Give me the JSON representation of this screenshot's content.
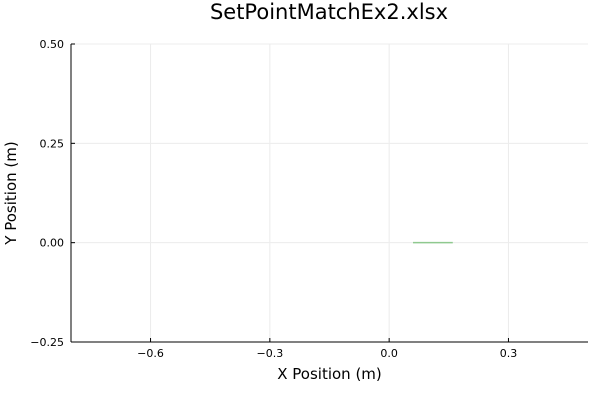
{
  "chart_data": {
    "type": "line",
    "title": "SetPointMatchEx2.xlsx",
    "xlabel": "X Position (m)",
    "ylabel": "Y Position (m)",
    "xlim": [
      -0.8,
      0.5
    ],
    "ylim": [
      -0.25,
      0.5
    ],
    "xticks": [
      -0.6,
      -0.3,
      0.0,
      0.3
    ],
    "xtick_labels": [
      "−0.6",
      "−0.3",
      "0.0",
      "0.3"
    ],
    "yticks": [
      -0.25,
      0.0,
      0.25,
      0.5
    ],
    "ytick_labels": [
      "−0.25",
      "0.00",
      "0.25",
      "0.50"
    ],
    "grid": true,
    "legend": "none",
    "series": [
      {
        "color": "#8fc98f",
        "x": [
          0.06,
          0.16
        ],
        "y": [
          0.0,
          0.0
        ]
      }
    ]
  }
}
